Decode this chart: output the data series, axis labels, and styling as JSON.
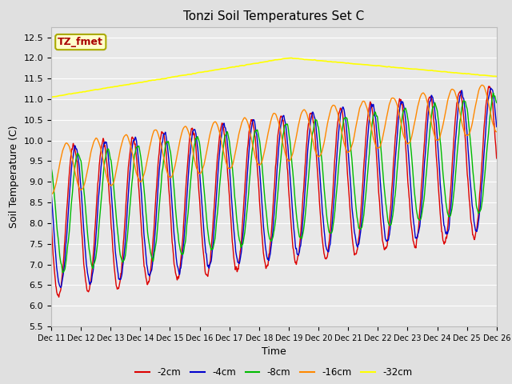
{
  "title": "Tonzi Soil Temperatures Set C",
  "xlabel": "Time",
  "ylabel": "Soil Temperature (C)",
  "ylim": [
    5.5,
    12.75
  ],
  "xlim": [
    0,
    360
  ],
  "background_color": "#e0e0e0",
  "plot_bg_color": "#e8e8e8",
  "grid_color": "white",
  "annotation_text": "TZ_fmet",
  "annotation_bg": "#ffffcc",
  "annotation_border": "#aaaa00",
  "annotation_text_color": "#aa0000",
  "legend_entries": [
    "-2cm",
    "-4cm",
    "-8cm",
    "-16cm",
    "-32cm"
  ],
  "line_colors": [
    "#dd0000",
    "#0000cc",
    "#00bb00",
    "#ff8800",
    "#ffff00"
  ],
  "line_widths": [
    1.0,
    1.0,
    1.0,
    1.0,
    1.2
  ],
  "xtick_labels": [
    "Dec 11",
    "Dec 12",
    "Dec 13",
    "Dec 14",
    "Dec 15",
    "Dec 16",
    "Dec 17",
    "Dec 18",
    "Dec 19",
    "Dec 20",
    "Dec 21",
    "Dec 22",
    "Dec 23",
    "Dec 24",
    "Dec 25",
    "Dec 26"
  ],
  "xtick_positions": [
    0,
    24,
    48,
    72,
    96,
    120,
    144,
    168,
    192,
    216,
    240,
    264,
    288,
    312,
    336,
    360
  ],
  "ytick_vals": [
    5.5,
    6.0,
    6.5,
    7.0,
    7.5,
    8.0,
    8.5,
    9.0,
    9.5,
    10.0,
    10.5,
    11.0,
    11.5,
    12.0,
    12.5
  ]
}
